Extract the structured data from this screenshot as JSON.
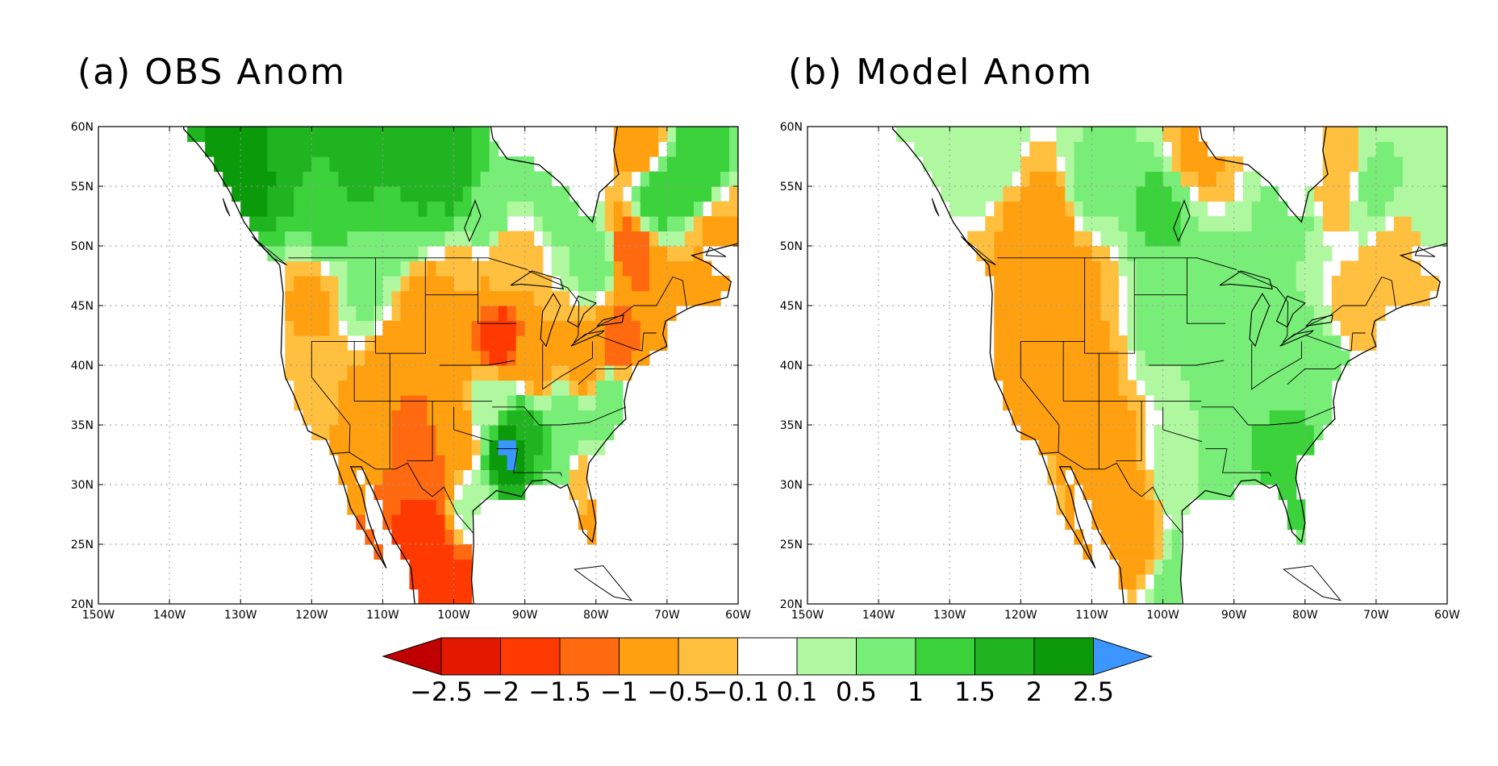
{
  "panels": [
    {
      "id": "obs",
      "title": "(a) OBS Anom",
      "field": "obs"
    },
    {
      "id": "model",
      "title": "(b) Model Anom",
      "field": "model"
    }
  ],
  "map": {
    "lon_range": [
      -150,
      -60
    ],
    "lat_range": [
      20,
      60
    ],
    "lon_ticks": [
      -150,
      -140,
      -130,
      -120,
      -110,
      -100,
      -90,
      -80,
      -70,
      -60
    ],
    "lat_ticks": [
      20,
      25,
      30,
      35,
      40,
      45,
      50,
      55,
      60
    ],
    "lon_tick_labels": [
      "150W",
      "140W",
      "130W",
      "120W",
      "110W",
      "100W",
      "90W",
      "80W",
      "70W",
      "60W"
    ],
    "lat_tick_labels": [
      "20N",
      "25N",
      "30N",
      "35N",
      "40N",
      "45N",
      "50N",
      "55N",
      "60N"
    ],
    "gridlines": true
  },
  "colorbar": {
    "levels": [
      -2.5,
      -2,
      -1.5,
      -1,
      -0.5,
      -0.1,
      0.1,
      0.5,
      1,
      1.5,
      2,
      2.5
    ],
    "level_labels": [
      "−2.5",
      "−2",
      "−1.5",
      "−1",
      "−0.5",
      "−0.1",
      "0.1",
      "0.5",
      "1",
      "1.5",
      "2",
      "2.5"
    ],
    "colors": [
      "#c00000",
      "#e21800",
      "#ff3a00",
      "#ff6a10",
      "#ffa010",
      "#ffc040",
      "#ffffff",
      "#b0f8a0",
      "#78ee78",
      "#3cd23c",
      "#20b420",
      "#0a9a0a",
      "#3c96ff"
    ],
    "extend": "both"
  },
  "fields": {
    "obs": [
      {
        "lon": -128,
        "lat": 57,
        "v": 2.2
      },
      {
        "lon": -124,
        "lat": 58,
        "v": 1.8
      },
      {
        "lon": -114,
        "lat": 57,
        "v": 1.8
      },
      {
        "lon": -106,
        "lat": 56,
        "v": 2.0
      },
      {
        "lon": -100,
        "lat": 56,
        "v": 1.7
      },
      {
        "lon": -118,
        "lat": 53,
        "v": 1.2
      },
      {
        "lon": -108,
        "lat": 52,
        "v": 1.0
      },
      {
        "lon": -95,
        "lat": 53,
        "v": 0.8
      },
      {
        "lon": -86,
        "lat": 55,
        "v": 0.8
      },
      {
        "lon": -72,
        "lat": 54,
        "v": 1.4
      },
      {
        "lon": -66,
        "lat": 56,
        "v": 1.5
      },
      {
        "lon": -80,
        "lat": 49,
        "v": 0.8
      },
      {
        "lon": -74,
        "lat": 58,
        "v": -0.8
      },
      {
        "lon": -75,
        "lat": 50,
        "v": -1.4
      },
      {
        "lon": -72,
        "lat": 46,
        "v": -1.0
      },
      {
        "lon": -68,
        "lat": 44,
        "v": -0.8
      },
      {
        "lon": -63,
        "lat": 51,
        "v": -0.6
      },
      {
        "lon": -92,
        "lat": 49,
        "v": -0.4
      },
      {
        "lon": -120,
        "lat": 45,
        "v": -0.6
      },
      {
        "lon": -112,
        "lat": 46,
        "v": 0.6
      },
      {
        "lon": -104,
        "lat": 45,
        "v": -0.8
      },
      {
        "lon": -98,
        "lat": 46,
        "v": -0.5
      },
      {
        "lon": -108,
        "lat": 41,
        "v": -0.8
      },
      {
        "lon": -100,
        "lat": 41,
        "v": -0.9
      },
      {
        "lon": -94,
        "lat": 42,
        "v": -1.8
      },
      {
        "lon": -88,
        "lat": 40,
        "v": -0.7
      },
      {
        "lon": -82,
        "lat": 40,
        "v": -0.9
      },
      {
        "lon": -77,
        "lat": 42,
        "v": -1.2
      },
      {
        "lon": -112,
        "lat": 36,
        "v": -0.7
      },
      {
        "lon": -106,
        "lat": 35,
        "v": -1.1
      },
      {
        "lon": -100,
        "lat": 34,
        "v": -0.9
      },
      {
        "lon": -104,
        "lat": 30,
        "v": -1.4
      },
      {
        "lon": -104,
        "lat": 26,
        "v": -1.8
      },
      {
        "lon": -100,
        "lat": 22,
        "v": -1.7
      },
      {
        "lon": -95,
        "lat": 37,
        "v": 0.4
      },
      {
        "lon": -90,
        "lat": 34,
        "v": 1.8
      },
      {
        "lon": -92,
        "lat": 33,
        "v": 2.6
      },
      {
        "lon": -86,
        "lat": 32,
        "v": 1.0
      },
      {
        "lon": -84,
        "lat": 36,
        "v": 0.8
      },
      {
        "lon": -78,
        "lat": 37,
        "v": 1.0
      },
      {
        "lon": -82,
        "lat": 30,
        "v": -0.3
      },
      {
        "lon": -80,
        "lat": 27,
        "v": -0.6
      },
      {
        "lon": -122,
        "lat": 38,
        "v": -0.1
      },
      {
        "lon": -98,
        "lat": 28,
        "v": 0.2
      }
    ],
    "model": [
      {
        "lon": -120,
        "lat": 52,
        "v": -0.6
      },
      {
        "lon": -110,
        "lat": 55,
        "v": 0.7
      },
      {
        "lon": -100,
        "lat": 53,
        "v": 1.1
      },
      {
        "lon": -95,
        "lat": 58,
        "v": -0.6
      },
      {
        "lon": -82,
        "lat": 53,
        "v": 0.6
      },
      {
        "lon": -76,
        "lat": 56,
        "v": -0.5
      },
      {
        "lon": -70,
        "lat": 55,
        "v": 0.6
      },
      {
        "lon": -66,
        "lat": 49,
        "v": -0.5
      },
      {
        "lon": -62,
        "lat": 53,
        "v": 0.5
      },
      {
        "lon": -120,
        "lat": 43,
        "v": -0.7
      },
      {
        "lon": -112,
        "lat": 47,
        "v": -0.6
      },
      {
        "lon": -110,
        "lat": 40,
        "v": -0.6
      },
      {
        "lon": -106,
        "lat": 34,
        "v": -0.7
      },
      {
        "lon": -104,
        "lat": 27,
        "v": -0.8
      },
      {
        "lon": -100,
        "lat": 43,
        "v": 0.7
      },
      {
        "lon": -94,
        "lat": 45,
        "v": 0.9
      },
      {
        "lon": -92,
        "lat": 39,
        "v": 0.8
      },
      {
        "lon": -86,
        "lat": 38,
        "v": 0.9
      },
      {
        "lon": -84,
        "lat": 33,
        "v": 1.2
      },
      {
        "lon": -80,
        "lat": 35,
        "v": 1.0
      },
      {
        "lon": -77,
        "lat": 39,
        "v": 0.9
      },
      {
        "lon": -72,
        "lat": 44,
        "v": -0.4
      },
      {
        "lon": -98,
        "lat": 31,
        "v": 0.4
      },
      {
        "lon": -90,
        "lat": 31,
        "v": 0.9
      },
      {
        "lon": -96,
        "lat": 22,
        "v": 1.0
      },
      {
        "lon": -116,
        "lat": 52,
        "v": -0.8
      },
      {
        "lon": -100,
        "lat": 36,
        "v": 0.1
      },
      {
        "lon": -124,
        "lat": 57,
        "v": 0.5
      }
    ]
  }
}
